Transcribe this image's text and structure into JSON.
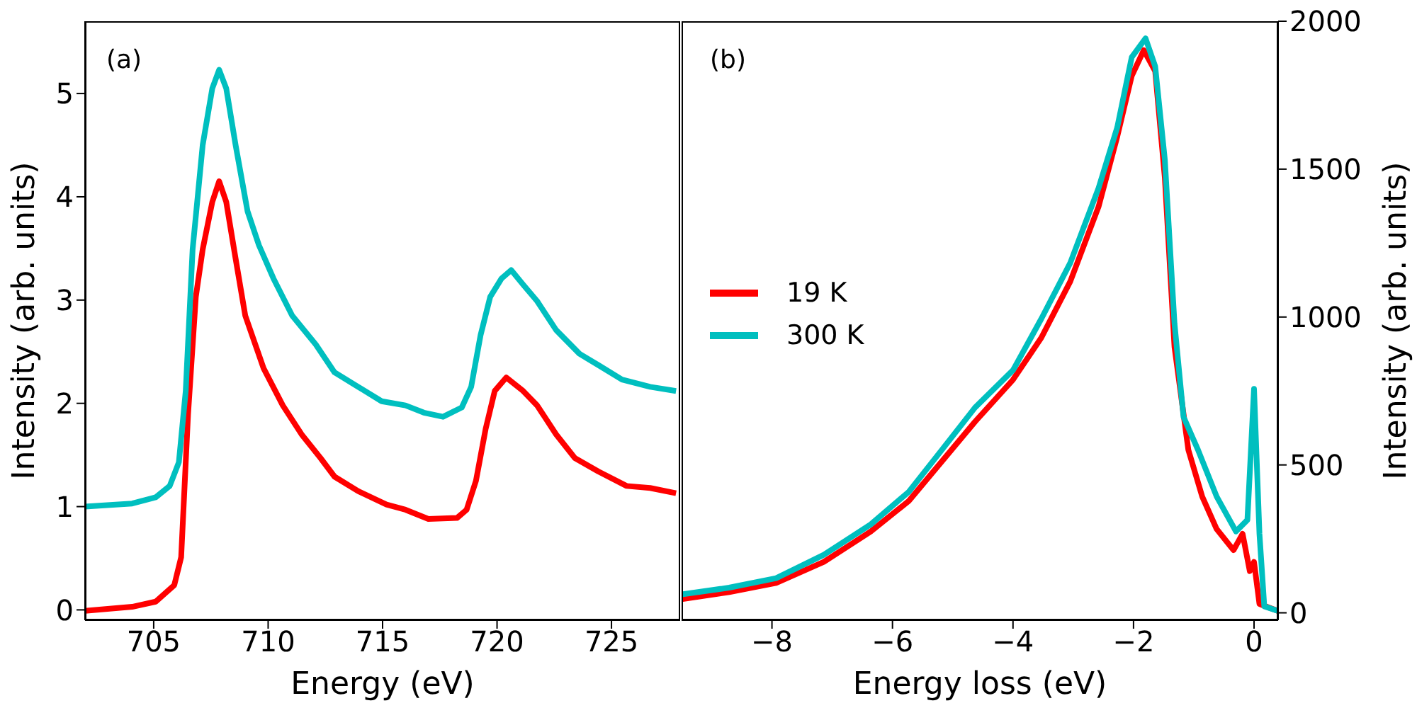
{
  "chart_data": [
    {
      "type": "line",
      "xlabel": "Energy (eV)",
      "ylabel": "Intensity (arb. units)",
      "annotations": [
        "(a)"
      ],
      "xlim": [
        702,
        728
      ],
      "ylim": [
        -0.1,
        5.7
      ],
      "xticks": [
        705,
        710,
        715,
        720,
        725
      ],
      "yticks": [
        0,
        1,
        2,
        3,
        4,
        5
      ],
      "grid": false,
      "legend": false,
      "marker": "none",
      "line_style": "solid",
      "series": [
        {
          "color": "#ff0000",
          "x": [
            702,
            704.06,
            705.09,
            705.9,
            706.2,
            706.5,
            706.84,
            707.14,
            707.56,
            707.86,
            708.17,
            708.58,
            709.0,
            709.8,
            710.64,
            711.46,
            712.29,
            712.9,
            713.93,
            715.17,
            716.0,
            717.0,
            718.25,
            718.67,
            719.08,
            719.5,
            719.9,
            720.4,
            721.14,
            721.75,
            722.58,
            723.4,
            724.43,
            725.66,
            726.69,
            727.82
          ],
          "values": [
            -0.01,
            0.03,
            0.08,
            0.24,
            0.51,
            1.89,
            3.03,
            3.49,
            3.95,
            4.15,
            3.95,
            3.4,
            2.85,
            2.34,
            1.98,
            1.7,
            1.47,
            1.29,
            1.15,
            1.02,
            0.97,
            0.88,
            0.89,
            0.97,
            1.25,
            1.75,
            2.12,
            2.25,
            2.12,
            1.98,
            1.7,
            1.47,
            1.34,
            1.2,
            1.18,
            1.13
          ]
        },
        {
          "color": "#00bfbf",
          "x": [
            702,
            704.06,
            705.09,
            705.7,
            706.1,
            706.4,
            706.7,
            707.14,
            707.56,
            707.86,
            708.17,
            708.58,
            709.1,
            709.6,
            710.23,
            711.05,
            712.08,
            712.9,
            713.93,
            714.96,
            716.0,
            716.8,
            717.64,
            718.46,
            718.87,
            719.28,
            719.7,
            720.2,
            720.62,
            721.14,
            721.75,
            722.58,
            723.6,
            724.43,
            725.46,
            726.69,
            727.82
          ],
          "values": [
            1.0,
            1.03,
            1.09,
            1.2,
            1.43,
            2.12,
            3.49,
            4.5,
            5.05,
            5.23,
            5.05,
            4.5,
            3.86,
            3.53,
            3.21,
            2.85,
            2.57,
            2.3,
            2.16,
            2.02,
            1.98,
            1.91,
            1.87,
            1.96,
            2.16,
            2.66,
            3.03,
            3.21,
            3.29,
            3.15,
            2.99,
            2.71,
            2.48,
            2.37,
            2.23,
            2.16,
            2.12
          ]
        }
      ]
    },
    {
      "type": "line",
      "xlabel": "Energy loss (eV)",
      "y2label": "Intensity (arb. units)",
      "annotations": [
        "(b)"
      ],
      "xlim": [
        -9.5,
        0.4
      ],
      "y2lim": [
        -25,
        2000
      ],
      "xticks": [
        {
          "value": -8,
          "label": "−8"
        },
        {
          "value": -6,
          "label": "−6"
        },
        {
          "value": -4,
          "label": "−4"
        },
        {
          "value": -2,
          "label": "−2"
        },
        0
      ],
      "y2ticks": [
        0,
        500,
        1000,
        1500,
        2000
      ],
      "grid": false,
      "legend": "left",
      "marker": "none",
      "line_style": "solid",
      "series": [
        {
          "name": "19 K",
          "axis": "y2",
          "color": "#ff0000",
          "x": [
            -9.5,
            -8.71,
            -7.93,
            -7.14,
            -6.36,
            -5.73,
            -5.18,
            -4.63,
            -4.0,
            -3.53,
            -3.05,
            -2.58,
            -2.27,
            -2.03,
            -1.83,
            -1.64,
            -1.48,
            -1.32,
            -1.09,
            -0.86,
            -0.62,
            -0.34,
            -0.19,
            -0.07,
            0.0,
            0.09,
            0.4
          ],
          "values": [
            46,
            70,
            101,
            172,
            275,
            378,
            512,
            646,
            788,
            930,
            1120,
            1373,
            1610,
            1815,
            1902,
            1831,
            1470,
            899,
            551,
            393,
            283,
            212,
            267,
            141,
            172,
            30,
            6
          ]
        },
        {
          "name": "300 K",
          "axis": "y2",
          "color": "#00bfbf",
          "x": [
            -9.5,
            -8.71,
            -7.93,
            -7.14,
            -6.36,
            -5.73,
            -5.18,
            -4.63,
            -4.0,
            -3.53,
            -3.05,
            -2.58,
            -2.27,
            -2.03,
            -1.8,
            -1.64,
            -1.48,
            -1.32,
            -1.17,
            -0.93,
            -0.62,
            -0.3,
            -0.11,
            0.0,
            0.09,
            0.17,
            0.4
          ],
          "values": [
            62,
            85,
            117,
            196,
            299,
            409,
            551,
            694,
            820,
            994,
            1183,
            1436,
            1641,
            1878,
            1942,
            1847,
            1531,
            978,
            662,
            551,
            393,
            275,
            314,
            757,
            267,
            22,
            6
          ]
        }
      ]
    }
  ]
}
